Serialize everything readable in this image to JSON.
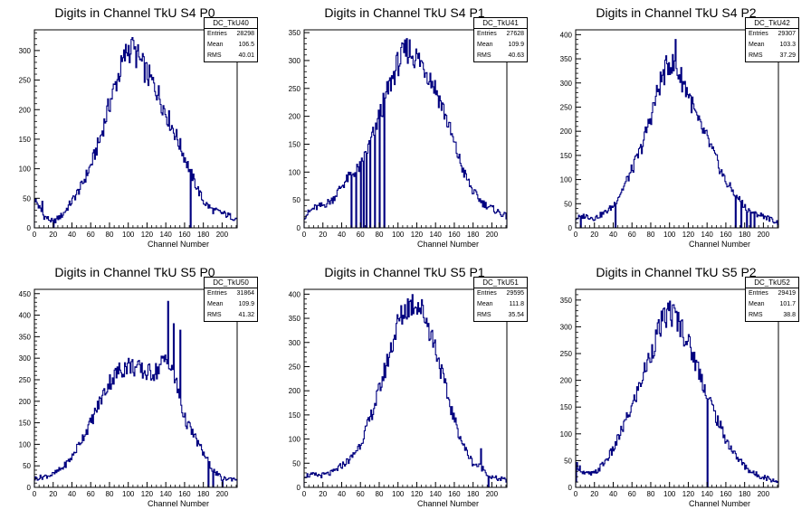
{
  "chart_data": [
    {
      "type": "histogram",
      "title": "Digits in Channel TkU S4 P0",
      "xlabel": "Channel Number",
      "ylabel": "",
      "xlim": [
        0,
        216
      ],
      "ylim": [
        0,
        335
      ],
      "xticks": [
        0,
        20,
        40,
        60,
        80,
        100,
        120,
        140,
        160,
        180,
        200
      ],
      "yticks": [
        0,
        50,
        100,
        150,
        200,
        250,
        300
      ],
      "stats": {
        "name": "DC_TkU40",
        "entries": "28298",
        "mean": "106.5",
        "rms": "40.01"
      },
      "outline": [
        [
          0,
          50
        ],
        [
          10,
          20
        ],
        [
          20,
          10
        ],
        [
          30,
          22
        ],
        [
          40,
          45
        ],
        [
          50,
          70
        ],
        [
          60,
          105
        ],
        [
          70,
          150
        ],
        [
          80,
          210
        ],
        [
          90,
          260
        ],
        [
          100,
          305
        ],
        [
          110,
          290
        ],
        [
          120,
          260
        ],
        [
          130,
          235
        ],
        [
          140,
          195
        ],
        [
          150,
          160
        ],
        [
          160,
          120
        ],
        [
          170,
          80
        ],
        [
          180,
          45
        ],
        [
          190,
          30
        ],
        [
          200,
          25
        ],
        [
          216,
          15
        ]
      ],
      "spikes": [
        [
          3,
          40
        ],
        [
          8,
          45
        ],
        [
          20,
          0
        ],
        [
          166,
          0
        ],
        [
          168,
          80
        ],
        [
          104,
          322
        ]
      ]
    },
    {
      "type": "histogram",
      "title": "Digits in Channel TkU S4 P1",
      "xlabel": "Channel Number",
      "ylabel": "",
      "xlim": [
        0,
        216
      ],
      "ylim": [
        0,
        355
      ],
      "xticks": [
        0,
        20,
        40,
        60,
        80,
        100,
        120,
        140,
        160,
        180,
        200
      ],
      "yticks": [
        0,
        50,
        100,
        150,
        200,
        250,
        300,
        350
      ],
      "stats": {
        "name": "DC_TkU41",
        "entries": "27628",
        "mean": "109.9",
        "rms": "40.63"
      },
      "outline": [
        [
          0,
          20
        ],
        [
          10,
          35
        ],
        [
          20,
          40
        ],
        [
          30,
          50
        ],
        [
          40,
          75
        ],
        [
          50,
          95
        ],
        [
          60,
          110
        ],
        [
          70,
          150
        ],
        [
          80,
          200
        ],
        [
          90,
          250
        ],
        [
          100,
          295
        ],
        [
          110,
          320
        ],
        [
          120,
          305
        ],
        [
          130,
          285
        ],
        [
          140,
          250
        ],
        [
          150,
          205
        ],
        [
          160,
          150
        ],
        [
          170,
          100
        ],
        [
          180,
          65
        ],
        [
          190,
          45
        ],
        [
          200,
          35
        ],
        [
          216,
          20
        ]
      ],
      "spikes": [
        [
          50,
          0
        ],
        [
          55,
          0
        ],
        [
          60,
          0
        ],
        [
          63,
          0
        ],
        [
          66,
          0
        ],
        [
          70,
          0
        ],
        [
          75,
          0
        ],
        [
          80,
          0
        ],
        [
          85,
          0
        ],
        [
          112,
          337
        ]
      ]
    },
    {
      "type": "histogram",
      "title": "Digits in Channel TkU S4 P2",
      "xlabel": "Channel Number",
      "ylabel": "",
      "xlim": [
        0,
        216
      ],
      "ylim": [
        0,
        410
      ],
      "xticks": [
        0,
        20,
        40,
        60,
        80,
        100,
        120,
        140,
        160,
        180,
        200
      ],
      "yticks": [
        0,
        50,
        100,
        150,
        200,
        250,
        300,
        350,
        400
      ],
      "stats": {
        "name": "DC_TkU42",
        "entries": "29307",
        "mean": "103.3",
        "rms": "37.29"
      },
      "outline": [
        [
          0,
          20
        ],
        [
          10,
          25
        ],
        [
          20,
          20
        ],
        [
          30,
          30
        ],
        [
          40,
          45
        ],
        [
          50,
          80
        ],
        [
          60,
          120
        ],
        [
          70,
          165
        ],
        [
          80,
          230
        ],
        [
          90,
          300
        ],
        [
          100,
          345
        ],
        [
          110,
          320
        ],
        [
          120,
          280
        ],
        [
          130,
          220
        ],
        [
          140,
          185
        ],
        [
          150,
          140
        ],
        [
          160,
          95
        ],
        [
          170,
          70
        ],
        [
          180,
          45
        ],
        [
          190,
          30
        ],
        [
          200,
          25
        ],
        [
          216,
          10
        ]
      ],
      "spikes": [
        [
          5,
          0
        ],
        [
          42,
          0
        ],
        [
          106,
          390
        ],
        [
          170,
          0
        ],
        [
          176,
          0
        ],
        [
          182,
          0
        ],
        [
          186,
          0
        ],
        [
          190,
          0
        ]
      ]
    },
    {
      "type": "histogram",
      "title": "Digits in Channel TkU S5 P0",
      "xlabel": "Channel Number",
      "ylabel": "",
      "xlim": [
        0,
        216
      ],
      "ylim": [
        0,
        460
      ],
      "xticks": [
        0,
        20,
        40,
        60,
        80,
        100,
        120,
        140,
        160,
        180,
        200
      ],
      "yticks": [
        0,
        50,
        100,
        150,
        200,
        250,
        300,
        350,
        400,
        450
      ],
      "stats": {
        "name": "DC_TkU50",
        "entries": "31864",
        "mean": "109.9",
        "rms": "41.32"
      },
      "outline": [
        [
          0,
          20
        ],
        [
          10,
          25
        ],
        [
          20,
          30
        ],
        [
          30,
          45
        ],
        [
          40,
          70
        ],
        [
          50,
          110
        ],
        [
          60,
          150
        ],
        [
          70,
          200
        ],
        [
          80,
          245
        ],
        [
          90,
          270
        ],
        [
          100,
          285
        ],
        [
          110,
          275
        ],
        [
          120,
          265
        ],
        [
          130,
          270
        ],
        [
          140,
          300
        ],
        [
          150,
          250
        ],
        [
          160,
          160
        ],
        [
          170,
          120
        ],
        [
          180,
          80
        ],
        [
          190,
          40
        ],
        [
          200,
          20
        ],
        [
          216,
          20
        ]
      ],
      "spikes": [
        [
          142,
          432
        ],
        [
          148,
          380
        ],
        [
          155,
          365
        ],
        [
          185,
          0
        ],
        [
          190,
          0
        ],
        [
          200,
          0
        ]
      ]
    },
    {
      "type": "histogram",
      "title": "Digits in Channel TkU S5 P1",
      "xlabel": "Channel Number",
      "ylabel": "",
      "xlim": [
        0,
        216
      ],
      "ylim": [
        0,
        410
      ],
      "xticks": [
        0,
        20,
        40,
        60,
        80,
        100,
        120,
        140,
        160,
        180,
        200
      ],
      "yticks": [
        0,
        50,
        100,
        150,
        200,
        250,
        300,
        350,
        400
      ],
      "stats": {
        "name": "DC_TkU51",
        "entries": "29595",
        "mean": "111.8",
        "rms": "35.54"
      },
      "outline": [
        [
          0,
          25
        ],
        [
          10,
          25
        ],
        [
          20,
          25
        ],
        [
          30,
          30
        ],
        [
          40,
          45
        ],
        [
          50,
          60
        ],
        [
          60,
          90
        ],
        [
          70,
          140
        ],
        [
          80,
          200
        ],
        [
          90,
          270
        ],
        [
          100,
          340
        ],
        [
          110,
          375
        ],
        [
          120,
          385
        ],
        [
          130,
          350
        ],
        [
          140,
          290
        ],
        [
          150,
          210
        ],
        [
          160,
          140
        ],
        [
          170,
          85
        ],
        [
          180,
          50
        ],
        [
          190,
          40
        ],
        [
          200,
          20
        ],
        [
          216,
          15
        ]
      ],
      "spikes": [
        [
          188,
          80
        ],
        [
          196,
          0
        ]
      ]
    },
    {
      "type": "histogram",
      "title": "Digits in Channel TkU S5 P2",
      "xlabel": "Channel Number",
      "ylabel": "",
      "xlim": [
        0,
        216
      ],
      "ylim": [
        0,
        370
      ],
      "xticks": [
        0,
        20,
        40,
        60,
        80,
        100,
        120,
        140,
        160,
        180,
        200
      ],
      "yticks": [
        0,
        50,
        100,
        150,
        200,
        250,
        300,
        350
      ],
      "stats": {
        "name": "DC_TkU52",
        "entries": "29419",
        "mean": "101.7",
        "rms": "38.8"
      },
      "outline": [
        [
          0,
          45
        ],
        [
          10,
          25
        ],
        [
          20,
          25
        ],
        [
          30,
          45
        ],
        [
          40,
          70
        ],
        [
          50,
          110
        ],
        [
          60,
          150
        ],
        [
          70,
          200
        ],
        [
          80,
          250
        ],
        [
          90,
          300
        ],
        [
          100,
          330
        ],
        [
          110,
          310
        ],
        [
          120,
          270
        ],
        [
          130,
          225
        ],
        [
          140,
          175
        ],
        [
          150,
          130
        ],
        [
          160,
          90
        ],
        [
          170,
          60
        ],
        [
          180,
          40
        ],
        [
          190,
          25
        ],
        [
          200,
          20
        ],
        [
          216,
          10
        ]
      ],
      "spikes": [
        [
          0,
          10
        ],
        [
          140,
          0
        ],
        [
          100,
          348
        ]
      ]
    }
  ]
}
